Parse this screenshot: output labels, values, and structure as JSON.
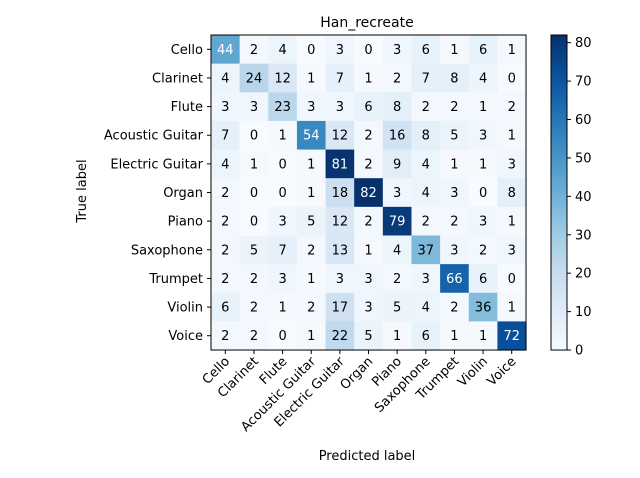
{
  "chart_data": {
    "type": "heatmap",
    "title": "Han_recreate",
    "xlabel": "Predicted label",
    "ylabel": "True label",
    "x_categories": [
      "Cello",
      "Clarinet",
      "Flute",
      "Acoustic Guitar",
      "Electric Guitar",
      "Organ",
      "Piano",
      "Saxophone",
      "Trumpet",
      "Violin",
      "Voice"
    ],
    "y_categories": [
      "Cello",
      "Clarinet",
      "Flute",
      "Acoustic Guitar",
      "Electric Guitar",
      "Organ",
      "Piano",
      "Saxophone",
      "Trumpet",
      "Violin",
      "Voice"
    ],
    "values": [
      [
        44,
        2,
        4,
        0,
        3,
        0,
        3,
        6,
        1,
        6,
        1
      ],
      [
        4,
        24,
        12,
        1,
        7,
        1,
        2,
        7,
        8,
        4,
        0
      ],
      [
        3,
        3,
        23,
        3,
        3,
        6,
        8,
        2,
        2,
        1,
        2
      ],
      [
        7,
        0,
        1,
        54,
        12,
        2,
        16,
        8,
        5,
        3,
        1
      ],
      [
        4,
        1,
        0,
        1,
        81,
        2,
        9,
        4,
        1,
        1,
        3
      ],
      [
        2,
        0,
        0,
        1,
        18,
        82,
        3,
        4,
        3,
        0,
        8
      ],
      [
        2,
        0,
        3,
        5,
        12,
        2,
        79,
        2,
        2,
        3,
        1
      ],
      [
        2,
        5,
        7,
        2,
        13,
        1,
        4,
        37,
        3,
        2,
        3
      ],
      [
        2,
        2,
        3,
        1,
        3,
        3,
        2,
        3,
        66,
        6,
        0
      ],
      [
        6,
        2,
        1,
        2,
        17,
        3,
        5,
        4,
        2,
        36,
        1
      ],
      [
        2,
        2,
        0,
        1,
        22,
        5,
        1,
        6,
        1,
        1,
        72
      ]
    ],
    "colorscale": "Blues",
    "vmin": 0,
    "vmax": 82,
    "colorbar_ticks": [
      0,
      10,
      20,
      30,
      40,
      50,
      60,
      70,
      80
    ]
  }
}
